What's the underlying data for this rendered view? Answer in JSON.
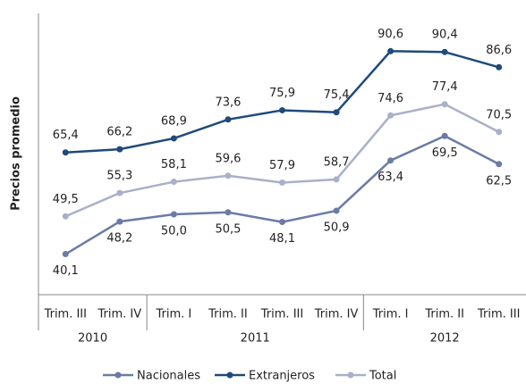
{
  "chart_data": {
    "type": "line",
    "y_label": "Precios promedio",
    "categories": [
      "Trim. III",
      "Trim. IV",
      "Trim. I",
      "Trim. II",
      "Trim. III",
      "Trim. IV",
      "Trim. I",
      "Trim. II",
      "Trim. III"
    ],
    "groups": [
      {
        "label": "2010",
        "count": 2
      },
      {
        "label": "2011",
        "count": 4
      },
      {
        "label": "2012",
        "count": 3
      }
    ],
    "ylim": [
      30,
      100
    ],
    "series": [
      {
        "name": "Nacionales",
        "color": "#6b7ba6",
        "label_position": "below",
        "values": [
          40.1,
          48.2,
          50.0,
          50.5,
          48.1,
          50.9,
          63.4,
          69.5,
          62.5
        ],
        "value_labels": [
          "40,1",
          "48,2",
          "50,0",
          "50,5",
          "48,1",
          "50,9",
          "63,4",
          "69,5",
          "62,5"
        ]
      },
      {
        "name": "Extranjeros",
        "color": "#1f4a7a",
        "label_position": "above",
        "values": [
          65.4,
          66.2,
          68.9,
          73.6,
          75.9,
          75.4,
          90.6,
          90.4,
          86.6
        ],
        "value_labels": [
          "65,4",
          "66,2",
          "68,9",
          "73,6",
          "75,9",
          "75,4",
          "90,6",
          "90,4",
          "86,6"
        ]
      },
      {
        "name": "Total",
        "color": "#a9b0c7",
        "label_position": "above",
        "values": [
          49.5,
          55.3,
          58.1,
          59.6,
          57.9,
          58.7,
          74.6,
          77.4,
          70.5
        ],
        "value_labels": [
          "49,5",
          "55,3",
          "58,1",
          "59,6",
          "57,9",
          "58,7",
          "74,6",
          "77,4",
          "70,5"
        ]
      }
    ]
  }
}
